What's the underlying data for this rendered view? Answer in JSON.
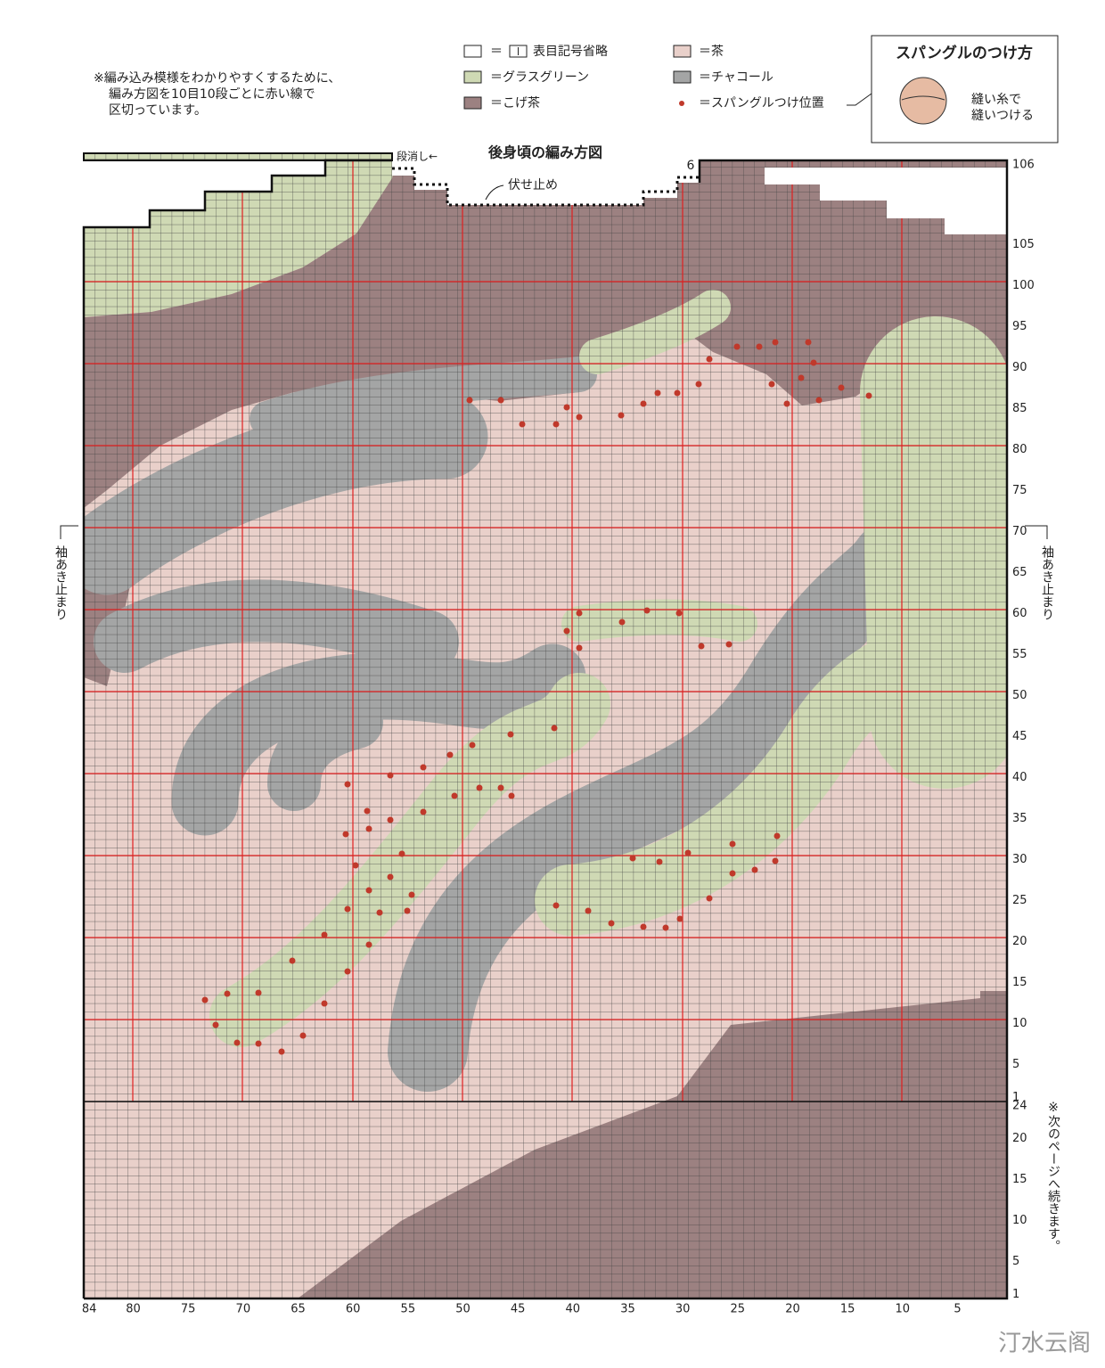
{
  "title": "後身頃の編み方図",
  "note": [
    "※編み込み模様をわかりやすくするために、",
    "編み方図を10目10段ごとに赤い線で",
    "区切っています。"
  ],
  "legend": [
    {
      "eq": "＝",
      "text": "表目記号省略"
    },
    {
      "text": "＝茶"
    },
    {
      "text": "＝グラスグリーン"
    },
    {
      "text": "＝チャコール"
    },
    {
      "text": "＝こげ茶"
    },
    {
      "text": "＝スパングルつけ位置"
    }
  ],
  "inset": {
    "title": "スパングルのつけ方",
    "text": [
      "縫い糸で",
      "縫いつける"
    ]
  },
  "annotations": {
    "step_off": "段消し←",
    "bind_off": "伏せ止め",
    "count": "6",
    "armhole_left": "袖あき止まり",
    "armhole_right": "袖あき止まり",
    "continued": "※次のページへ続きます。"
  },
  "rows": [
    106,
    105,
    100,
    95,
    90,
    85,
    80,
    75,
    70,
    65,
    60,
    55,
    50,
    45,
    40,
    35,
    30,
    25,
    20,
    15,
    10,
    5,
    1
  ],
  "rib_rows": [
    24,
    20,
    15,
    10,
    5,
    1
  ],
  "columns": [
    84,
    80,
    75,
    70,
    65,
    60,
    55,
    50,
    45,
    40,
    35,
    30,
    25,
    20,
    15,
    10,
    5
  ],
  "watermark": "汀水云阁"
}
